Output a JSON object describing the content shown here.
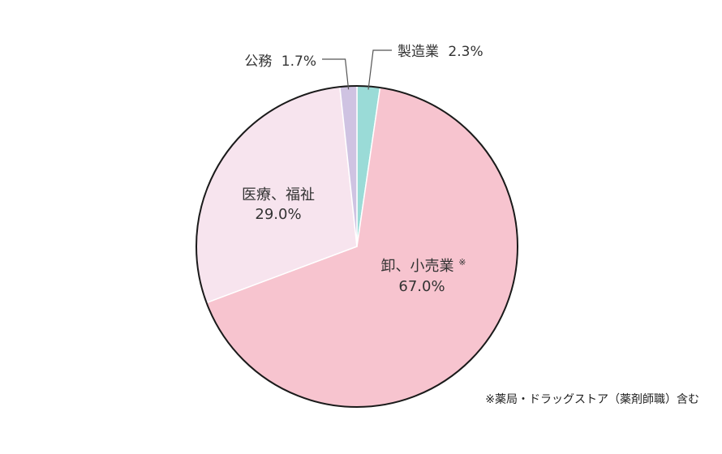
{
  "chart_data": {
    "type": "pie",
    "title": "",
    "start_angle_deg": 0,
    "direction": "clockwise",
    "slices": [
      {
        "label": "製造業",
        "value": 2.3,
        "value_label": "2.3%",
        "color": "#9adbd7"
      },
      {
        "label": "卸、小売業",
        "label_mark": "※",
        "value": 67.0,
        "value_label": "67.0%",
        "color": "#f7c4cf"
      },
      {
        "label": "医療、福祉",
        "value": 29.0,
        "value_label": "29.0%",
        "color": "#f7e4ee"
      },
      {
        "label": "公務",
        "value": 1.7,
        "value_label": "1.7%",
        "color": "#cfc3e2"
      }
    ],
    "outline_color": "#1a1a1a",
    "footnote": "※薬局・ドラッグストア（薬剤師職）含む"
  }
}
